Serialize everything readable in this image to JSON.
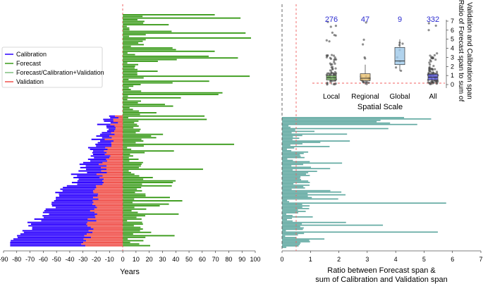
{
  "chart_data": [
    {
      "type": "bar",
      "subtype": "horizontal-stacked-timeline",
      "xlabel": "Years",
      "xlim": [
        -90,
        100
      ],
      "xticks": [
        -90,
        -80,
        -70,
        -60,
        -50,
        -40,
        -30,
        -20,
        -10,
        0,
        10,
        20,
        30,
        40,
        50,
        60,
        70,
        80,
        90,
        100
      ],
      "reference_line_x": 0,
      "legend": {
        "position": "left",
        "entries": [
          {
            "label": "Calibration",
            "color": "#2b00ff"
          },
          {
            "label": "Forecast",
            "color": "#3a9b1a"
          },
          {
            "label": "Forecast/Calibration+Validation",
            "color": "#7fbf7f"
          },
          {
            "label": "Validation",
            "color": "#f0504a"
          }
        ]
      },
      "n_studies": 332,
      "series_summary": {
        "calibration_max_span_years": 85,
        "validation_max_span_years": 35,
        "forecast_max_span_years": 100
      }
    },
    {
      "type": "bar",
      "subtype": "horizontal",
      "xlabel_line1": "Ratio between Forecast span &",
      "xlabel_line2": "sum of Calibration and Validation span",
      "xlim": [
        0,
        7
      ],
      "xticks": [
        0,
        1,
        2,
        3,
        4,
        5,
        6,
        7
      ],
      "reference_lines": [
        {
          "x": 0,
          "style": "dashed",
          "color": "#555555"
        },
        {
          "x": 0.5,
          "style": "dashed",
          "color": "#f06060"
        }
      ],
      "bar_color": "#5fa8a0",
      "max_ratio": 7
    },
    {
      "type": "box",
      "xlabel": "Spatial Scale",
      "ylabel_line1": "Ratio of Forecast span to sum of",
      "ylabel_line2": "Validation and Calibration span",
      "ylim": [
        0,
        7
      ],
      "yticks": [
        0,
        1,
        2,
        3,
        4,
        5,
        6,
        7
      ],
      "reference_line_y": 0.5,
      "categories": [
        "Local",
        "Regional",
        "Global",
        "All"
      ],
      "counts": [
        "276",
        "47",
        "9",
        "332"
      ],
      "colors": [
        "#7fbf6a",
        "#e8c070",
        "#9ec8e8",
        "#6060e0"
      ],
      "boxes": [
        {
          "name": "Local",
          "q1": 0.5,
          "median": 0.75,
          "q3": 1.0,
          "whisker_low": 0.0,
          "whisker_high": 1.6
        },
        {
          "name": "Regional",
          "q1": 0.45,
          "median": 0.7,
          "q3": 1.2,
          "whisker_low": 0.0,
          "whisker_high": 2.2
        },
        {
          "name": "Global",
          "q1": 2.2,
          "median": 2.6,
          "q3": 4.1,
          "whisker_low": 1.5,
          "whisker_high": 5.0
        },
        {
          "name": "All",
          "q1": 0.5,
          "median": 0.8,
          "q3": 1.15,
          "whisker_low": 0.0,
          "whisker_high": 1.8
        }
      ]
    }
  ]
}
